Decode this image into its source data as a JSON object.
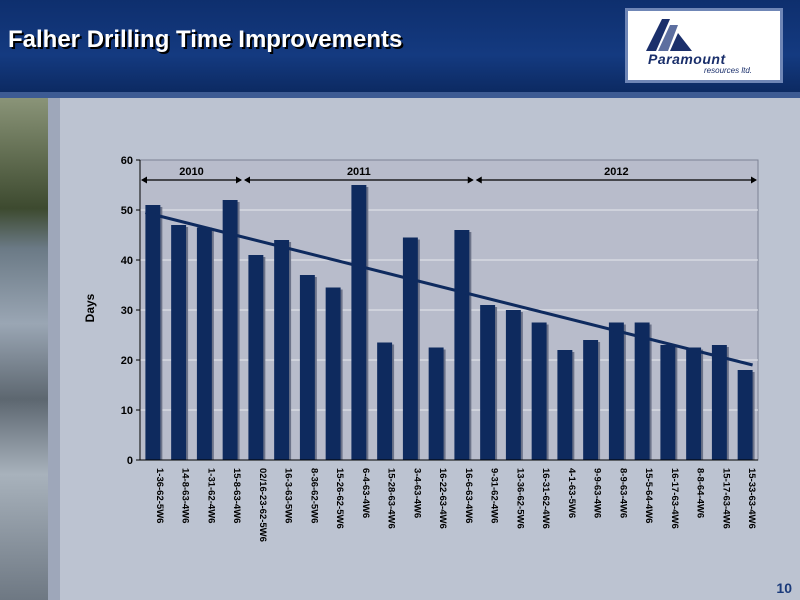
{
  "header": {
    "title": "Falher Drilling Time Improvements"
  },
  "logo": {
    "name": "Paramount",
    "tagline": "resources ltd."
  },
  "page": {
    "number": "10"
  },
  "colors": {
    "bar": "#0e2a5e",
    "trend": "#0e2a5e",
    "header_bg": "#143a80"
  },
  "chart_data": {
    "type": "bar",
    "ylabel": "Days",
    "xlabel": "",
    "ylim": [
      0,
      60
    ],
    "yticks": [
      0,
      10,
      20,
      30,
      40,
      50,
      60
    ],
    "grid": true,
    "categories": [
      "1-36-62-5W6",
      "14-8-63-4W6",
      "1-31-62-4W6",
      "15-8-63-4W6",
      "02/16-23-62-5W6",
      "16-3-63-5W6",
      "8-36-62-5W6",
      "15-26-62-5W6",
      "6-4-63-4W6",
      "15-28-63-4W6",
      "3-4-63-4W6",
      "16-22-63-4W6",
      "16-6-63-4W6",
      "9-31-62-4W6",
      "13-36-62-5W6",
      "16-31-62-4W6",
      "4-1-63-5W6",
      "9-9-63-4W6",
      "8-9-63-4W6",
      "15-5-64-4W6",
      "16-17-63-4W6",
      "8-8-64-4W6",
      "15-17-63-4W6",
      "15-33-63-4W6"
    ],
    "values": [
      51,
      47,
      46.5,
      52,
      41,
      44,
      37,
      34.5,
      55,
      23.5,
      44.5,
      22.5,
      46,
      31,
      30,
      27.5,
      22,
      24,
      27.5,
      27.5,
      23,
      22.5,
      23,
      18
    ],
    "trendline": {
      "start": 49.5,
      "end": 19
    },
    "periods": [
      {
        "label": "2010",
        "start_index": 0,
        "end_index": 3
      },
      {
        "label": "2011",
        "start_index": 4,
        "end_index": 12
      },
      {
        "label": "2012",
        "start_index": 13,
        "end_index": 23
      }
    ]
  }
}
